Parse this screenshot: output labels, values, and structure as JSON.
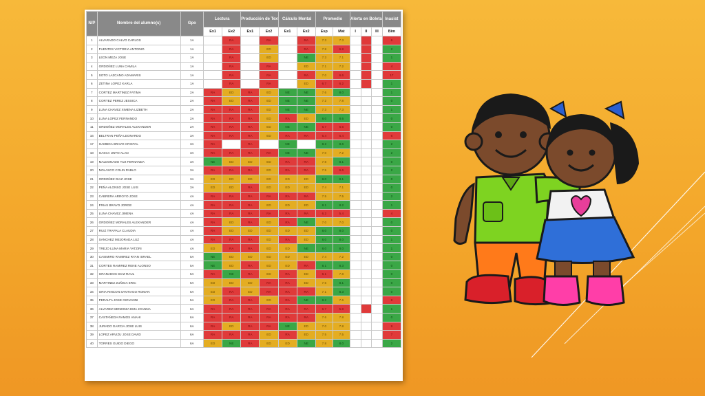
{
  "colors": {
    "background": "#f5ae30",
    "red": "#e03a3a",
    "yellow": "#e4ad22",
    "green": "#3aa746",
    "header": "#898989"
  },
  "table": {
    "headers": {
      "np": "N/P",
      "name": "Nombre del alumno(s)",
      "gpo": "Gpo",
      "lectura": "Lectura",
      "produccion": "Producción de Textos",
      "calculo": "Cálculo Mental",
      "promedio": "Promedio",
      "alerta": "Alerta en Boleta",
      "inasist": "Inasist"
    },
    "subheaders": {
      "ex1": "Ex1",
      "ex2": "Ex2",
      "esp": "Esp",
      "mat": "Mat",
      "i": "I",
      "ii": "II",
      "iii": "III",
      "bim": "Bim"
    },
    "rows": [
      {
        "n": "1",
        "name": "ALVARADO CALVO CARLOS",
        "gpo": "1A",
        "lec": [
          "",
          "RA"
        ],
        "prod": [
          "",
          "RA"
        ],
        "calc": [
          "",
          "RA"
        ],
        "esp": "7.3",
        "mat": "7.3",
        "al": [
          "w",
          "r",
          "w"
        ],
        "bim": "6"
      },
      {
        "n": "2",
        "name": "FUENTES VICTORIA ANTONIO",
        "gpo": "1A",
        "lec": [
          "",
          "RA"
        ],
        "prod": [
          "",
          "ED"
        ],
        "calc": [
          "",
          "RA"
        ],
        "esp": "7.8",
        "mat": "6.8",
        "al": [
          "w",
          "r",
          "w"
        ],
        "bim": "2"
      },
      {
        "n": "3",
        "name": "LEON MEZA JOSE",
        "gpo": "1A",
        "lec": [
          "",
          "RA"
        ],
        "prod": [
          "",
          "ED"
        ],
        "calc": [
          "",
          "NE"
        ],
        "esp": "7.3",
        "mat": "7.1",
        "al": [
          "w",
          "r",
          "w"
        ],
        "bim": "1"
      },
      {
        "n": "4",
        "name": "ORDOÑEZ LUNA CAMILA",
        "gpo": "1A",
        "lec": [
          "",
          "RA"
        ],
        "prod": [
          "",
          "RA"
        ],
        "calc": [
          "",
          "ED"
        ],
        "esp": "7.1",
        "mat": "7.2",
        "al": [
          "w",
          "r",
          "w"
        ],
        "bim": "4"
      },
      {
        "n": "5",
        "name": "SOTO LAZCANO ADAMARIS",
        "gpo": "1A",
        "lec": [
          "",
          "RA"
        ],
        "prod": [
          "",
          "RA"
        ],
        "calc": [
          "",
          "RA"
        ],
        "esp": "7.0",
        "mat": "6.6",
        "al": [
          "w",
          "r",
          "w"
        ],
        "bim": "17"
      },
      {
        "n": "6",
        "name": "ZETINA LOPEZ KARLA",
        "gpo": "1A",
        "lec": [
          "",
          "RA"
        ],
        "prod": [
          "",
          "RA"
        ],
        "calc": [
          "",
          "ED"
        ],
        "esp": "6.7",
        "mat": "6.2",
        "al": [
          "w",
          "r",
          "w"
        ],
        "bim": "1"
      },
      {
        "n": "7",
        "name": "CORTEZ MARTINEZ FATIMA",
        "gpo": "2A",
        "lec": [
          "RA",
          "ED"
        ],
        "prod": [
          "RA",
          "ED"
        ],
        "calc": [
          "NE",
          "NE"
        ],
        "esp": "7.6",
        "mat": "8.0",
        "al": [
          "w",
          "w",
          "w"
        ],
        "bim": "1"
      },
      {
        "n": "8",
        "name": "CORTEZ PEREZ JESSICA",
        "gpo": "2A",
        "lec": [
          "RA",
          "ED"
        ],
        "prod": [
          "RA",
          "ED"
        ],
        "calc": [
          "NE",
          "NE"
        ],
        "esp": "7.2",
        "mat": "7.8",
        "al": [
          "w",
          "w",
          "w"
        ],
        "bim": "0"
      },
      {
        "n": "9",
        "name": "LUNA CHAVEZ XIMENA LIZBETH",
        "gpo": "2A",
        "lec": [
          "RA",
          "RA"
        ],
        "prod": [
          "RA",
          "ED"
        ],
        "calc": [
          "NE",
          "NE"
        ],
        "esp": "7.3",
        "mat": "7.3",
        "al": [
          "w",
          "w",
          "w"
        ],
        "bim": "1"
      },
      {
        "n": "10",
        "name": "LUNA LOPEZ FERNANDO",
        "gpo": "2A",
        "lec": [
          "RA",
          "RA"
        ],
        "prod": [
          "RA",
          "ED"
        ],
        "calc": [
          "RA",
          "ED"
        ],
        "esp": "8.0",
        "mat": "8.6",
        "al": [
          "w",
          "w",
          "w"
        ],
        "bim": "0"
      },
      {
        "n": "11",
        "name": "ORDOÑEZ MORALES ALEXANDER",
        "gpo": "2A",
        "lec": [
          "RA",
          "RA"
        ],
        "prod": [
          "RA",
          "ED"
        ],
        "calc": [
          "NE",
          "NE"
        ],
        "esp": "6.7",
        "mat": "6.6",
        "al": [
          "w",
          "w",
          "w"
        ],
        "bim": "0"
      },
      {
        "n": "16",
        "name": "BELTRAN PEÑA LEONARDO",
        "gpo": "3A",
        "lec": [
          "RA",
          "RA"
        ],
        "prod": [
          "RA",
          "ED"
        ],
        "calc": [
          "RA",
          "RA"
        ],
        "esp": "6.4",
        "mat": "6.4",
        "al": [
          "w",
          "w",
          "w"
        ],
        "bim": "6"
      },
      {
        "n": "17",
        "name": "GAMBOA BRAVO CRISTAL",
        "gpo": "3A",
        "lec": [
          "RA",
          ""
        ],
        "prod": [
          "RA",
          ""
        ],
        "calc": [
          "NE",
          ""
        ],
        "esp": "8.2",
        "mat": "8.6",
        "al": [
          "w",
          "w",
          "w"
        ],
        "bim": "2"
      },
      {
        "n": "18",
        "name": "GASCA UNTO ALAN",
        "gpo": "3A",
        "lec": [
          "RA",
          "RA"
        ],
        "prod": [
          "RA",
          "RA"
        ],
        "calc": [
          "NE",
          "NE"
        ],
        "esp": "7.0",
        "mat": "7.2",
        "al": [
          "w",
          "w",
          "w"
        ],
        "bim": "2"
      },
      {
        "n": "19",
        "name": "MALDONADO TUZ FERNANDA",
        "gpo": "3A",
        "lec": [
          "NE",
          "ED"
        ],
        "prod": [
          "ED",
          "ED"
        ],
        "calc": [
          "RA",
          "RA"
        ],
        "esp": "7.8",
        "mat": "8.1",
        "al": [
          "w",
          "w",
          "w"
        ],
        "bim": "0"
      },
      {
        "n": "20",
        "name": "NOLASCO COLIN PABLO",
        "gpo": "3A",
        "lec": [
          "RA",
          "RA"
        ],
        "prod": [
          "RA",
          "ED"
        ],
        "calc": [
          "RA",
          "RA"
        ],
        "esp": "7.5",
        "mat": "6.6",
        "al": [
          "w",
          "w",
          "w"
        ],
        "bim": "2"
      },
      {
        "n": "21",
        "name": "ORDOÑEZ DIAZ JOSE",
        "gpo": "3A",
        "lec": [
          "ED",
          "ED"
        ],
        "prod": [
          "ED",
          "ED"
        ],
        "calc": [
          "ED",
          "ED"
        ],
        "esp": "8.0",
        "mat": "8.1",
        "al": [
          "w",
          "w",
          "w"
        ],
        "bim": "0"
      },
      {
        "n": "22",
        "name": "PEÑA ALONSO JOSE LUIS",
        "gpo": "3A",
        "lec": [
          "ED",
          "ED"
        ],
        "prod": [
          "RA",
          "ED"
        ],
        "calc": [
          "ED",
          "ED"
        ],
        "esp": "7.4",
        "mat": "7.1",
        "al": [
          "w",
          "w",
          "w"
        ],
        "bim": "0"
      },
      {
        "n": "23",
        "name": "CABRERA ARROYO JOSE",
        "gpo": "4A",
        "lec": [
          "RA",
          "RA"
        ],
        "prod": [
          "RA",
          "RA"
        ],
        "calc": [
          "RA",
          "RA"
        ],
        "esp": "7.5",
        "mat": "7.5",
        "al": [
          "w",
          "w",
          "w"
        ],
        "bim": "2"
      },
      {
        "n": "24",
        "name": "FRIAS BRAVO JORGE",
        "gpo": "4A",
        "lec": [
          "RA",
          "RA"
        ],
        "prod": [
          "RA",
          "ED"
        ],
        "calc": [
          "ED",
          "ED"
        ],
        "esp": "8.1",
        "mat": "8.2",
        "al": [
          "w",
          "w",
          "w"
        ],
        "bim": "1"
      },
      {
        "n": "25",
        "name": "LUNA CHAVEZ JIMENA",
        "gpo": "4A",
        "lec": [
          "RA",
          "RA"
        ],
        "prod": [
          "RA",
          "RA"
        ],
        "calc": [
          "RA",
          "RA"
        ],
        "esp": "6.2",
        "mat": "5.4",
        "al": [
          "w",
          "w",
          "w"
        ],
        "bim": "4"
      },
      {
        "n": "26",
        "name": "ORDOÑEZ MORALES ALEXANDER",
        "gpo": "4A",
        "lec": [
          "RA",
          "ED"
        ],
        "prod": [
          "RA",
          "ED"
        ],
        "calc": [
          "RA",
          "NE"
        ],
        "esp": "7.0",
        "mat": "7.0",
        "al": [
          "w",
          "w",
          "w"
        ],
        "bim": "0"
      },
      {
        "n": "27",
        "name": "RUIZ TRAPALA CLAUDIA",
        "gpo": "4A",
        "lec": [
          "RA",
          "ED"
        ],
        "prod": [
          "ED",
          "ED"
        ],
        "calc": [
          "ED",
          "ED"
        ],
        "esp": "8.0",
        "mat": "8.0",
        "al": [
          "w",
          "w",
          "w"
        ],
        "bim": "0"
      },
      {
        "n": "28",
        "name": "SANCHEZ MEJORADA LUZ",
        "gpo": "4A",
        "lec": [
          "RA",
          "RA"
        ],
        "prod": [
          "RA",
          "ED"
        ],
        "calc": [
          "RA",
          "ED"
        ],
        "esp": "8.0",
        "mat": "8.0",
        "al": [
          "w",
          "w",
          "w"
        ],
        "bim": "1"
      },
      {
        "n": "29",
        "name": "TREJO LUNA MARIA YATZIRI",
        "gpo": "4A",
        "lec": [
          "ED",
          "RA"
        ],
        "prod": [
          "RA",
          "ED"
        ],
        "calc": [
          "ED",
          "NE"
        ],
        "esp": "8.0",
        "mat": "8.0",
        "al": [
          "w",
          "w",
          "w"
        ],
        "bim": "1"
      },
      {
        "n": "30",
        "name": "CASIMIRO RAMIREZ RYAN ISRAEL",
        "gpo": "5A",
        "lec": [
          "NE",
          "ED"
        ],
        "prod": [
          "ED",
          "ED"
        ],
        "calc": [
          "ED",
          "ED"
        ],
        "esp": "7.4",
        "mat": "7.2",
        "al": [
          "w",
          "w",
          "w"
        ],
        "bim": "0"
      },
      {
        "n": "31",
        "name": "CORTES RAMIREZ RENE ALONSO",
        "gpo": "5A",
        "lec": [
          "NE",
          "ED"
        ],
        "prod": [
          "RA",
          "ED"
        ],
        "calc": [
          "ED",
          "RA"
        ],
        "esp": "8.1",
        "mat": "8.3",
        "al": [
          "w",
          "w",
          "w"
        ],
        "bim": "0"
      },
      {
        "n": "32",
        "name": "GRANADOS DIAZ RAUL",
        "gpo": "5A",
        "lec": [
          "RA",
          "NE"
        ],
        "prod": [
          "RA",
          "ED"
        ],
        "calc": [
          "RA",
          "ED"
        ],
        "esp": "6.1",
        "mat": "7.8",
        "al": [
          "w",
          "w",
          "w"
        ],
        "bim": "0"
      },
      {
        "n": "33",
        "name": "MARTINEZ ZUÑIGA ERIC",
        "gpo": "5A",
        "lec": [
          "ED",
          "ED"
        ],
        "prod": [
          "ED",
          "RA"
        ],
        "calc": [
          "RA",
          "ED"
        ],
        "esp": "7.6",
        "mat": "8.1",
        "al": [
          "w",
          "w",
          "w"
        ],
        "bim": "0"
      },
      {
        "n": "34",
        "name": "ORIA RINCON SANTIAGO ROMAN",
        "gpo": "5A",
        "lec": [
          "ED",
          "RA"
        ],
        "prod": [
          "ED",
          "RA"
        ],
        "calc": [
          "RA",
          "RA"
        ],
        "esp": "7.1",
        "mat": "8.3",
        "al": [
          "w",
          "w",
          "w"
        ],
        "bim": "0"
      },
      {
        "n": "35",
        "name": "PERALTA JOSE GIOVANNI",
        "gpo": "5A",
        "lec": [
          "ED",
          "RA"
        ],
        "prod": [
          "RA",
          "ED"
        ],
        "calc": [
          "RA",
          "NE"
        ],
        "esp": "8.2",
        "mat": "7.6",
        "al": [
          "w",
          "w",
          "w"
        ],
        "bim": "8"
      },
      {
        "n": "36",
        "name": "ALVAREZ MENDOZA EMA JOANNA",
        "gpo": "6A",
        "lec": [
          "RA",
          "RA"
        ],
        "prod": [
          "RA",
          "RA"
        ],
        "calc": [
          "RA",
          "RA"
        ],
        "esp": "6.7",
        "mat": "5.8",
        "al": [
          "w",
          "r",
          "w"
        ],
        "bim": "1"
      },
      {
        "n": "37",
        "name": "CASTAÑEDA RAMOS ANAHI",
        "gpo": "6A",
        "lec": [
          "RA",
          "RA"
        ],
        "prod": [
          "RA",
          "RA"
        ],
        "calc": [
          "RA",
          "RA"
        ],
        "esp": "7.6",
        "mat": "7.8",
        "al": [
          "w",
          "w",
          "w"
        ],
        "bim": "0"
      },
      {
        "n": "38",
        "name": "JURADO GARCIA JOSE LUIS",
        "gpo": "6A",
        "lec": [
          "RA",
          "ED"
        ],
        "prod": [
          "RA",
          "RA"
        ],
        "calc": [
          "NE",
          "ED"
        ],
        "esp": "7.0",
        "mat": "7.8",
        "al": [
          "w",
          "w",
          "w"
        ],
        "bim": "9"
      },
      {
        "n": "39",
        "name": "LOPEZ ARVIZU JOSE DAVID",
        "gpo": "6A",
        "lec": [
          "RA",
          "RA"
        ],
        "prod": [
          "RA",
          "ED"
        ],
        "calc": [
          "RA",
          "ED"
        ],
        "esp": "7.5",
        "mat": "7.5",
        "al": [
          "w",
          "w",
          "w"
        ],
        "bim": "7"
      },
      {
        "n": "40",
        "name": "TORRES GUIDO DIEGO",
        "gpo": "6A",
        "lec": [
          "ED",
          "NE"
        ],
        "prod": [
          "RA",
          "ED"
        ],
        "calc": [
          "ED",
          "NE"
        ],
        "esp": "7.8",
        "mat": "8.0",
        "al": [
          "w",
          "w",
          "w"
        ],
        "bim": "2"
      }
    ]
  }
}
